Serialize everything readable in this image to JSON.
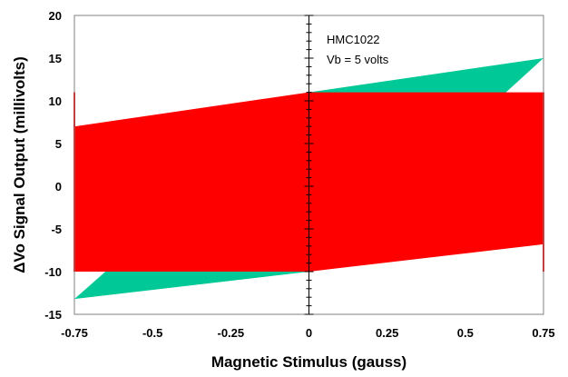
{
  "chart_data": {
    "type": "area",
    "title": "",
    "xlabel": "Magnetic Stimulus (gauss)",
    "ylabel": "ΔVo Signal Output (millivolts)",
    "xlim": [
      -0.75,
      0.75
    ],
    "ylim": [
      -15,
      20
    ],
    "x_ticks": [
      "-0.75",
      "-0.5",
      "-0.25",
      "0",
      "0.25",
      "0.5",
      "0.75"
    ],
    "y_ticks": [
      "20",
      "15",
      "10",
      "5",
      "0",
      "-5",
      "-10",
      "-15"
    ],
    "annotations": [
      "HMC1022",
      "Vb = 5 volts"
    ],
    "grid": false,
    "series": [
      {
        "color": "#00c896",
        "upper": [
          [
            0,
            11
          ],
          [
            0.75,
            15
          ]
        ],
        "lower": [
          [
            -0.75,
            -13.2
          ],
          [
            0,
            -10
          ]
        ]
      },
      {
        "color": "#ff0000",
        "upper": [
          [
            -0.75,
            7
          ],
          [
            0,
            11
          ],
          [
            0.75,
            11
          ]
        ],
        "lower": [
          [
            -0.75,
            -10
          ],
          [
            0,
            -10
          ],
          [
            0.75,
            -6.8
          ]
        ],
        "edges": [
          [
            -0.75,
            -10,
            11
          ],
          [
            0.75,
            -10,
            11
          ]
        ]
      }
    ]
  }
}
